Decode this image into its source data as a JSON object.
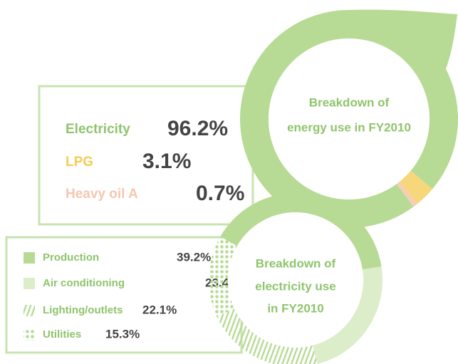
{
  "chart_data": [
    {
      "type": "pie",
      "title": [
        "Breakdown of",
        "energy use in FY2010"
      ],
      "categories": [
        "Electricity",
        "LPG",
        "Heavy oil A"
      ],
      "values": [
        96.2,
        3.1,
        0.7
      ],
      "value_labels": [
        "96.2%",
        "3.1%",
        "0.7%"
      ],
      "colors": [
        "#b7db95",
        "#f6d77a",
        "#f7cdb8"
      ],
      "fills": [
        "solid",
        "solid",
        "solid"
      ]
    },
    {
      "type": "pie",
      "title": [
        "Breakdown of",
        "electricity use",
        "in FY2010"
      ],
      "categories": [
        "Production",
        "Air conditioning",
        "Lighting/outlets",
        "Utilities"
      ],
      "values": [
        39.2,
        23.4,
        22.1,
        15.3
      ],
      "value_labels": [
        "39.2%",
        "23.4%",
        "22.1%",
        "15.3%"
      ],
      "colors": [
        "#b7db95",
        "#dbeec9",
        "#b7db95",
        "#b7db95"
      ],
      "fills": [
        "solid",
        "solid",
        "stripes",
        "dots"
      ]
    }
  ]
}
